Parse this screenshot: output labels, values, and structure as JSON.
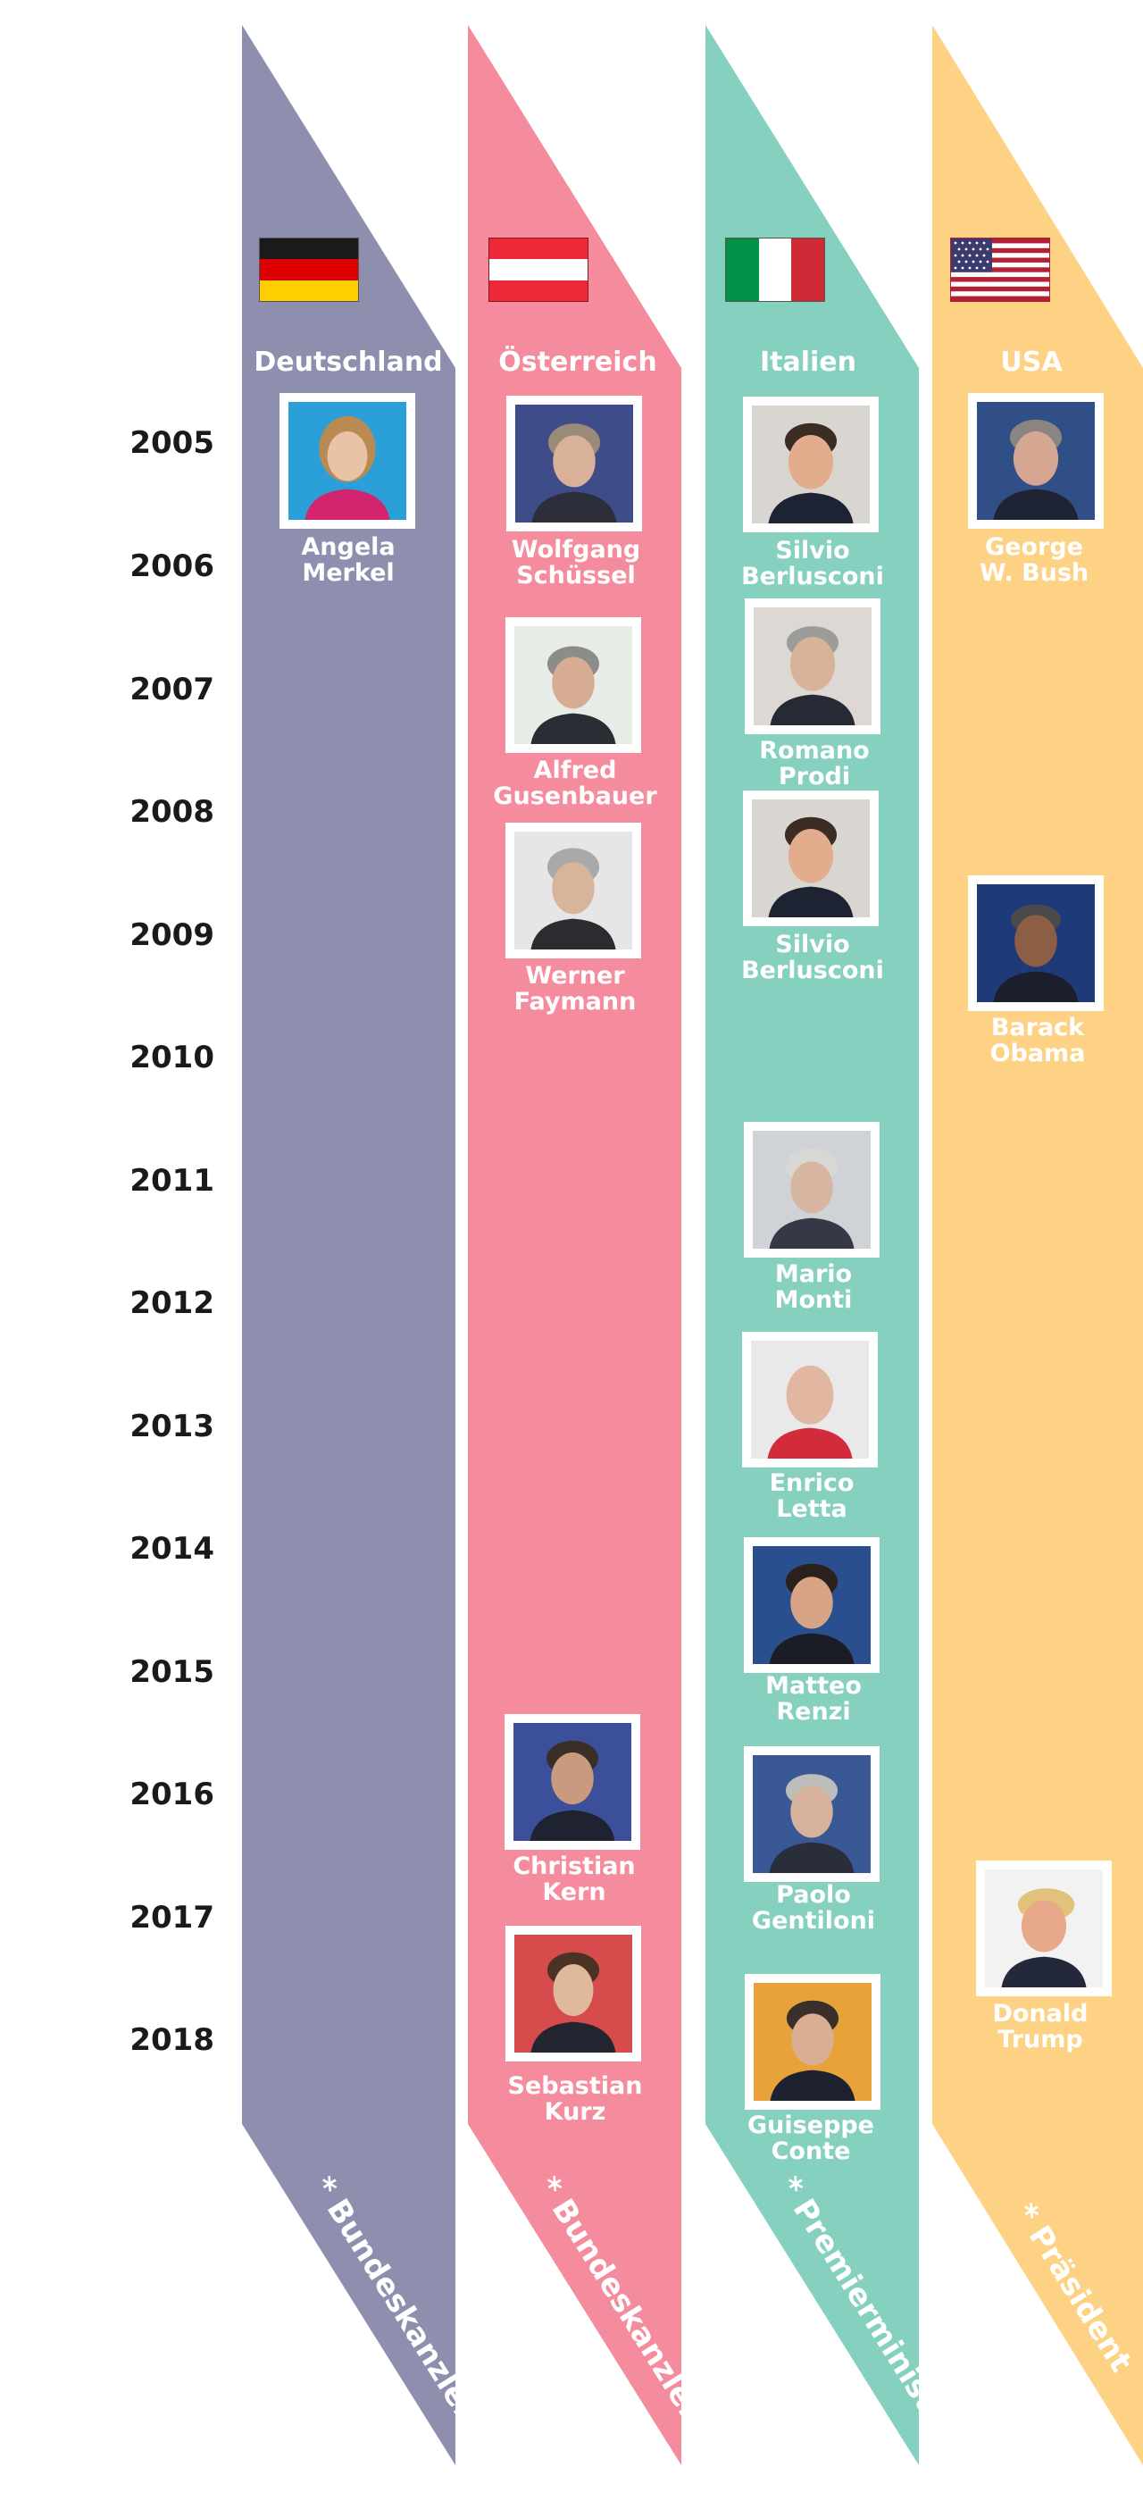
{
  "years": [
    "2005",
    "2006",
    "2007",
    "2008",
    "2009",
    "2010",
    "2011",
    "2012",
    "2013",
    "2014",
    "2015",
    "2016",
    "2017",
    "2018"
  ],
  "colors": {
    "germany": "#8e8fae",
    "austria": "#f48c9e",
    "italy": "#85d0bf",
    "usa": "#fdd285",
    "text_light": "#ffffff",
    "text_dark": "#1a1a1a"
  },
  "countries": [
    {
      "name": "Deutschland",
      "flag": "flag-germany",
      "footnote": "* Bundeskanzlerin",
      "leaders": [
        {
          "name": "Angela\nMerkel"
        }
      ]
    },
    {
      "name": "Österreich",
      "flag": "flag-austria",
      "footnote": "* Bundeskanzler",
      "leaders": [
        {
          "name": "Wolfgang\nSchüssel"
        },
        {
          "name": "Alfred\nGusenbauer"
        },
        {
          "name": "Werner\nFaymann"
        },
        {
          "name": "Christian\nKern"
        },
        {
          "name": "Sebastian\nKurz"
        }
      ]
    },
    {
      "name": "Italien",
      "flag": "flag-italy",
      "footnote": "* Premierminister",
      "leaders": [
        {
          "name": "Silvio\nBerlusconi"
        },
        {
          "name": "Romano\nProdi"
        },
        {
          "name": "Silvio\nBerlusconi"
        },
        {
          "name": "Mario\nMonti"
        },
        {
          "name": "Enrico\nLetta"
        },
        {
          "name": "Matteo\nRenzi"
        },
        {
          "name": "Paolo\nGentiloni"
        },
        {
          "name": "Guiseppe\nConte"
        }
      ]
    },
    {
      "name": "USA",
      "flag": "flag-usa",
      "footnote": "* Präsident",
      "leaders": [
        {
          "name": "George\nW. Bush"
        },
        {
          "name": "Barack\nObama"
        },
        {
          "name": "Donald\nTrump"
        }
      ]
    }
  ]
}
